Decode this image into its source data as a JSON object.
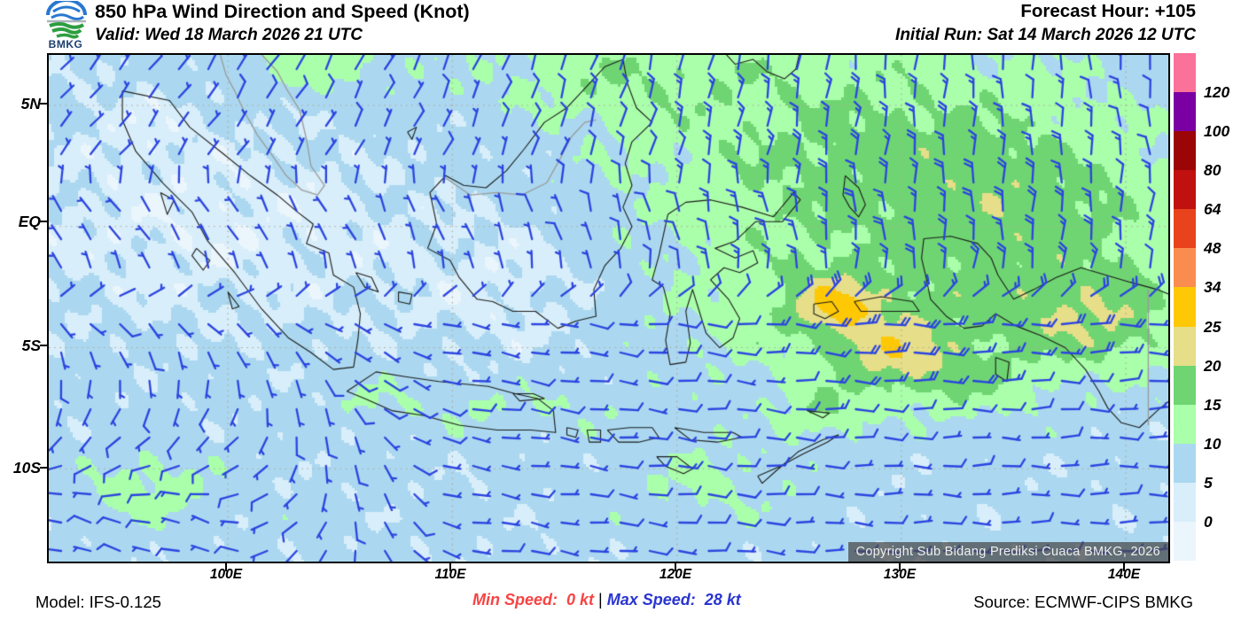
{
  "header": {
    "logo_text": "BMKG",
    "title": "850 hPa Wind Direction and Speed (Knot)",
    "valid_line": "Valid: Wed 18 March 2026 21 UTC",
    "forecast_hour": "Forecast Hour: +105",
    "initial_run": "Initial Run: Sat 14 March 2026 12 UTC"
  },
  "map": {
    "lat_tick_labels": [
      "5N",
      "EQ",
      "5S",
      "10S"
    ],
    "lon_tick_labels": [
      "100E",
      "110E",
      "120E",
      "130E",
      "140E"
    ],
    "copyright_text": "Copyright Sub Bidang Prediksi Cuaca BMKG, 2026",
    "wind_barb_color": "#2b44e0",
    "coastline_color": "#1a1a1a",
    "foreign_border_color": "#9a9a9a",
    "gridline_color": "#b0a79b"
  },
  "colorbar": {
    "tick_labels": [
      "120",
      "100",
      "80",
      "64",
      "48",
      "34",
      "25",
      "20",
      "15",
      "10",
      "5",
      "0"
    ],
    "segment_colors_top_to_bottom": [
      "#fa7199",
      "#7b00a3",
      "#9c0505",
      "#c01010",
      "#e8431c",
      "#fb8c50",
      "#ffc805",
      "#e6de88",
      "#6fd572",
      "#aaffaa",
      "#abd8f0",
      "#d8eefa",
      "#ebf5fc"
    ]
  },
  "footer": {
    "model_label": "Model: IFS-0.125",
    "min_speed_label": "Min Speed:  0 kt",
    "separator": " | ",
    "max_speed_label": "Max Speed:  28 kt",
    "source_label": "Source: ECMWF-CIPS BMKG",
    "min_speed_color": "#f84343",
    "max_speed_color": "#2a35d0"
  }
}
